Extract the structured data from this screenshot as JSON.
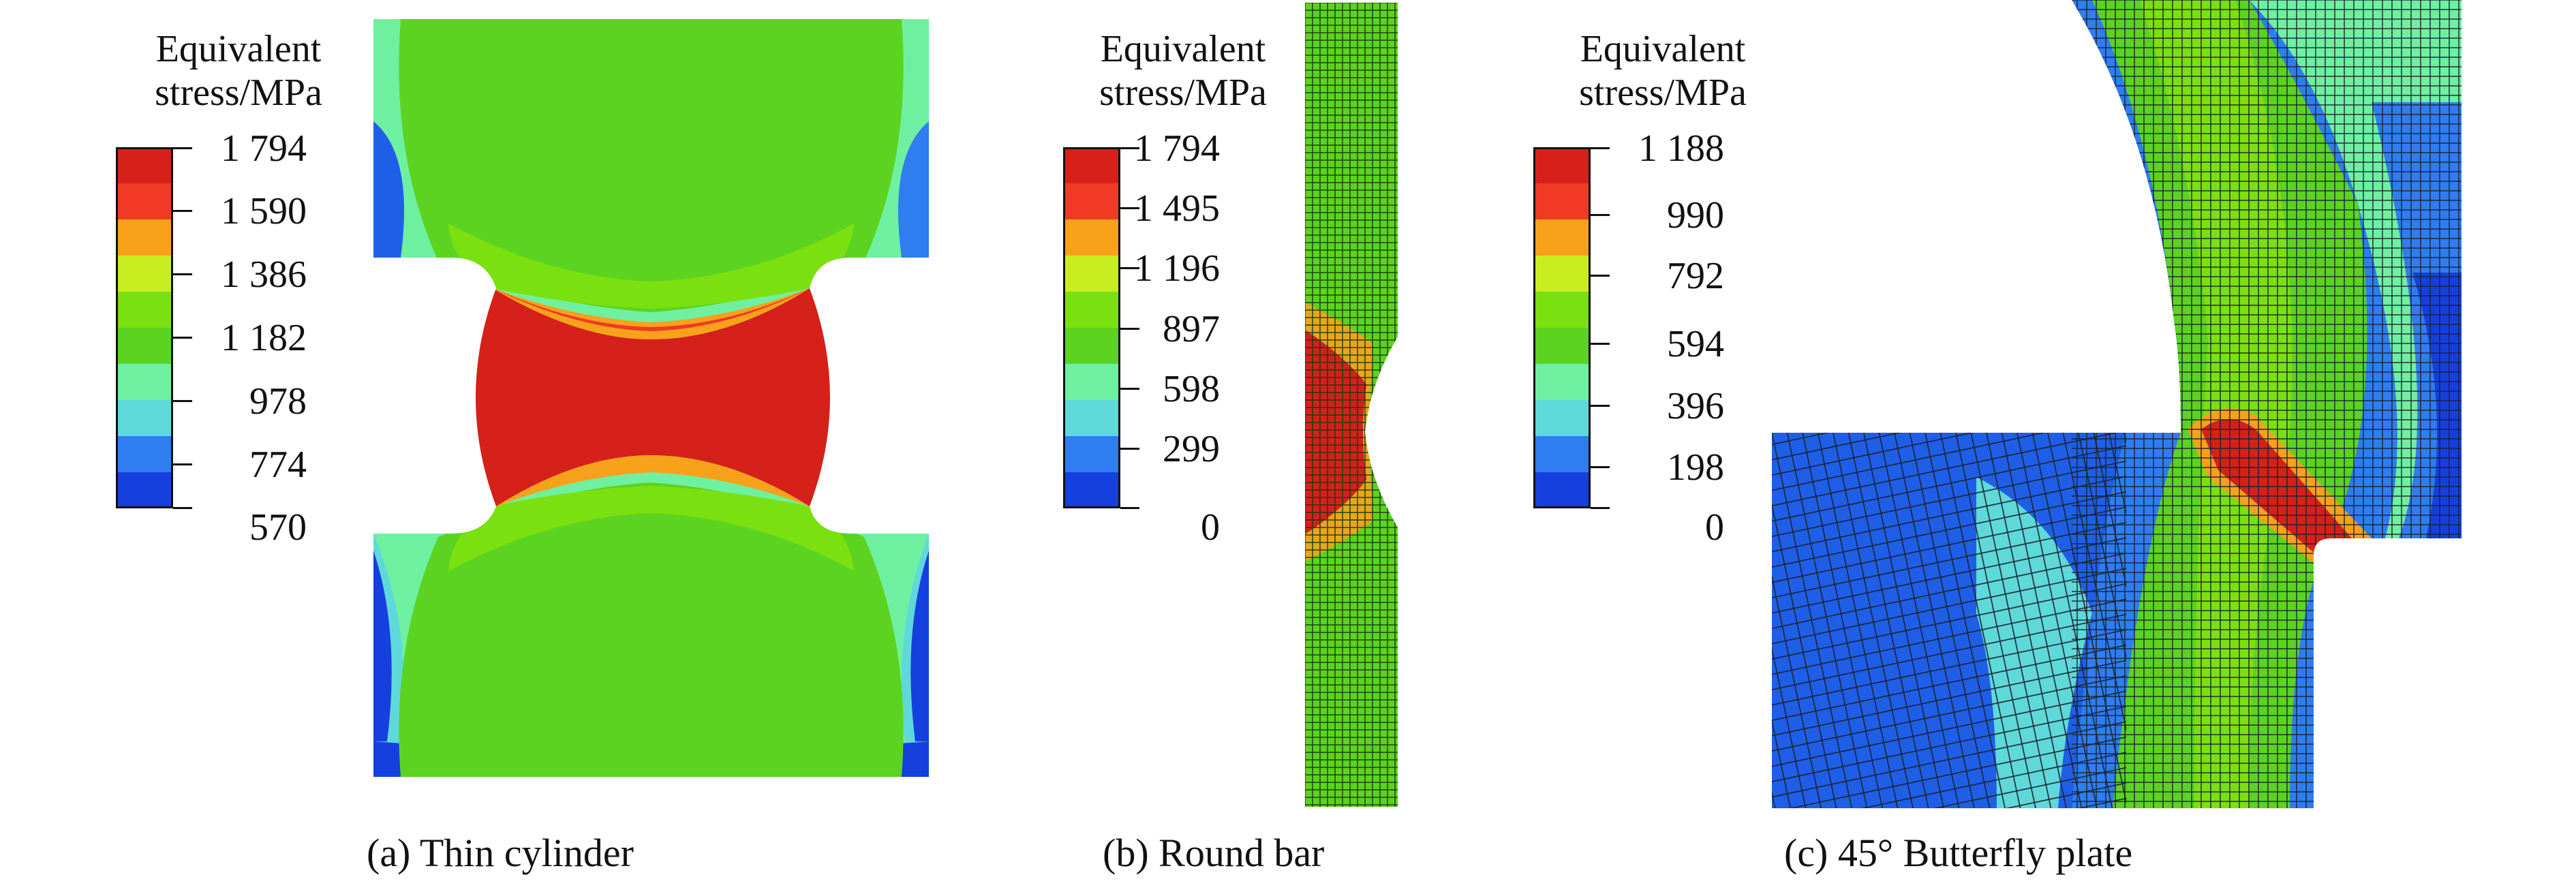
{
  "legend_colors": [
    "#1540dd",
    "#2f7df0",
    "#5fd8da",
    "#6ff0a0",
    "#5cd320",
    "#7be010",
    "#c9ee20",
    "#f7a21a",
    "#f03a26",
    "#d6201a"
  ],
  "panels": [
    {
      "id": "a",
      "legend_title_line1": "Equivalent",
      "legend_title_line2": "stress/MPa",
      "ticks": [
        "1 794",
        "1 590",
        "1 386",
        "1 182",
        "978",
        "774",
        "570"
      ],
      "caption": "(a) Thin cylinder",
      "fill_icon": "contour-cylinder-icon"
    },
    {
      "id": "b",
      "legend_title_line1": "Equivalent",
      "legend_title_line2": "stress/MPa",
      "ticks": [
        "1 794",
        "1 495",
        "1 196",
        "897",
        "598",
        "299",
        "0"
      ],
      "caption": "(b) Round bar",
      "fill_icon": "contour-round-bar-icon"
    },
    {
      "id": "c",
      "legend_title_line1": "Equivalent",
      "legend_title_line2": "stress/MPa",
      "ticks": [
        "1 188",
        "990",
        "792",
        "594",
        "396",
        "198",
        "0"
      ],
      "caption": "(c) 45° Butterfly plate",
      "fill_icon": "contour-butterfly-plate-icon"
    }
  ]
}
